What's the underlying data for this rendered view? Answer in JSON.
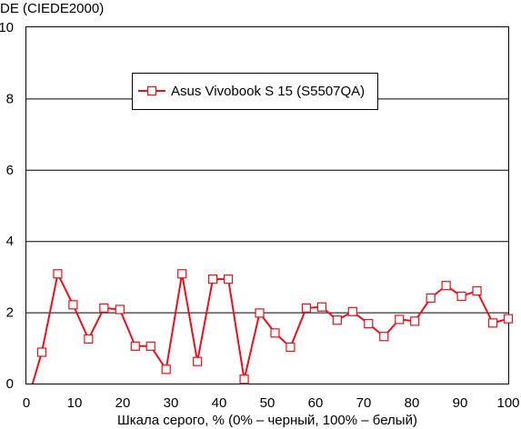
{
  "chart_data": {
    "type": "line",
    "ylabel": "DE (CIEDE2000)",
    "xlabel": "Шкала серого, % (0% – черный, 100% – белый)",
    "xlim": [
      0,
      100
    ],
    "ylim": [
      0,
      10
    ],
    "xticks": [
      0,
      10,
      20,
      30,
      40,
      50,
      60,
      70,
      80,
      90,
      100
    ],
    "yticks": [
      0,
      2,
      4,
      6,
      8,
      10
    ],
    "grid": "horizontal",
    "legend_position": "top-left inside",
    "series": [
      {
        "name": "Asus Vivobook S 15 (S5507QA)",
        "color": "#e8101c",
        "marker": "open-square",
        "x": [
          3.2,
          6.5,
          9.7,
          12.9,
          16.1,
          19.4,
          22.6,
          25.8,
          29.0,
          32.3,
          35.5,
          38.7,
          41.9,
          45.2,
          48.4,
          51.6,
          54.8,
          58.1,
          61.3,
          64.5,
          67.7,
          71.0,
          74.2,
          77.4,
          80.6,
          83.9,
          87.1,
          90.3,
          93.5,
          96.8,
          100
        ],
        "y": [
          0.88,
          3.08,
          2.21,
          1.25,
          2.12,
          2.08,
          1.05,
          1.05,
          0.4,
          3.08,
          0.62,
          2.93,
          2.93,
          0.12,
          1.98,
          1.42,
          1.02,
          2.12,
          2.15,
          1.78,
          2.02,
          1.68,
          1.32,
          1.8,
          1.75,
          2.4,
          2.75,
          2.45,
          2.6,
          1.7,
          1.82
        ]
      }
    ]
  }
}
